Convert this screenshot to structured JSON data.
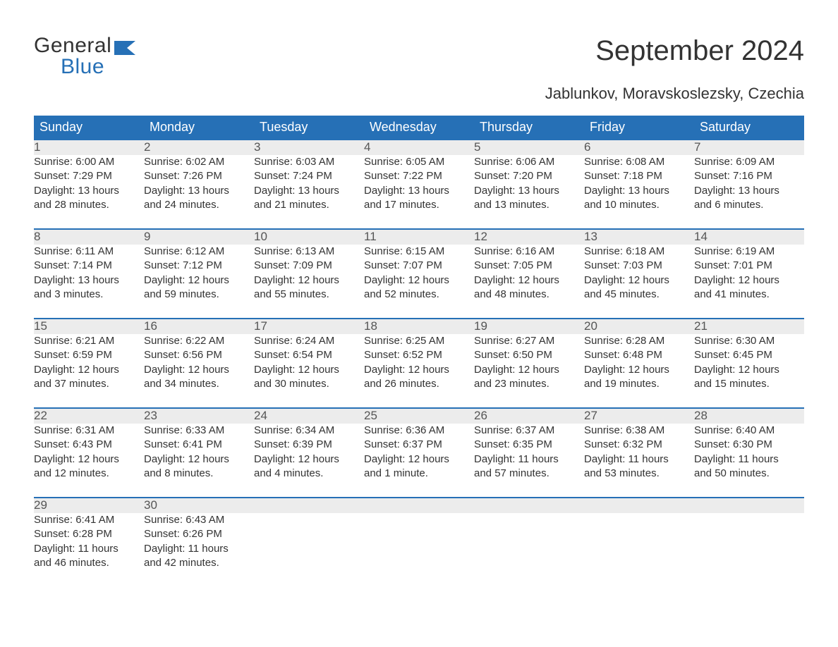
{
  "brand": {
    "line1": "General",
    "line2": "Blue"
  },
  "title": "September 2024",
  "location": "Jablunkov, Moravskoslezsky, Czechia",
  "colors": {
    "header_bg": "#2670b6",
    "header_text": "#ffffff",
    "daynum_bg": "#ececec",
    "border_top": "#2670b6",
    "body_text": "#333333",
    "daynum_text": "#555555",
    "background": "#ffffff"
  },
  "weekday_headers": [
    "Sunday",
    "Monday",
    "Tuesday",
    "Wednesday",
    "Thursday",
    "Friday",
    "Saturday"
  ],
  "weeks": [
    [
      {
        "n": "1",
        "sr": "Sunrise: 6:00 AM",
        "ss": "Sunset: 7:29 PM",
        "d1": "Daylight: 13 hours",
        "d2": "and 28 minutes."
      },
      {
        "n": "2",
        "sr": "Sunrise: 6:02 AM",
        "ss": "Sunset: 7:26 PM",
        "d1": "Daylight: 13 hours",
        "d2": "and 24 minutes."
      },
      {
        "n": "3",
        "sr": "Sunrise: 6:03 AM",
        "ss": "Sunset: 7:24 PM",
        "d1": "Daylight: 13 hours",
        "d2": "and 21 minutes."
      },
      {
        "n": "4",
        "sr": "Sunrise: 6:05 AM",
        "ss": "Sunset: 7:22 PM",
        "d1": "Daylight: 13 hours",
        "d2": "and 17 minutes."
      },
      {
        "n": "5",
        "sr": "Sunrise: 6:06 AM",
        "ss": "Sunset: 7:20 PM",
        "d1": "Daylight: 13 hours",
        "d2": "and 13 minutes."
      },
      {
        "n": "6",
        "sr": "Sunrise: 6:08 AM",
        "ss": "Sunset: 7:18 PM",
        "d1": "Daylight: 13 hours",
        "d2": "and 10 minutes."
      },
      {
        "n": "7",
        "sr": "Sunrise: 6:09 AM",
        "ss": "Sunset: 7:16 PM",
        "d1": "Daylight: 13 hours",
        "d2": "and 6 minutes."
      }
    ],
    [
      {
        "n": "8",
        "sr": "Sunrise: 6:11 AM",
        "ss": "Sunset: 7:14 PM",
        "d1": "Daylight: 13 hours",
        "d2": "and 3 minutes."
      },
      {
        "n": "9",
        "sr": "Sunrise: 6:12 AM",
        "ss": "Sunset: 7:12 PM",
        "d1": "Daylight: 12 hours",
        "d2": "and 59 minutes."
      },
      {
        "n": "10",
        "sr": "Sunrise: 6:13 AM",
        "ss": "Sunset: 7:09 PM",
        "d1": "Daylight: 12 hours",
        "d2": "and 55 minutes."
      },
      {
        "n": "11",
        "sr": "Sunrise: 6:15 AM",
        "ss": "Sunset: 7:07 PM",
        "d1": "Daylight: 12 hours",
        "d2": "and 52 minutes."
      },
      {
        "n": "12",
        "sr": "Sunrise: 6:16 AM",
        "ss": "Sunset: 7:05 PM",
        "d1": "Daylight: 12 hours",
        "d2": "and 48 minutes."
      },
      {
        "n": "13",
        "sr": "Sunrise: 6:18 AM",
        "ss": "Sunset: 7:03 PM",
        "d1": "Daylight: 12 hours",
        "d2": "and 45 minutes."
      },
      {
        "n": "14",
        "sr": "Sunrise: 6:19 AM",
        "ss": "Sunset: 7:01 PM",
        "d1": "Daylight: 12 hours",
        "d2": "and 41 minutes."
      }
    ],
    [
      {
        "n": "15",
        "sr": "Sunrise: 6:21 AM",
        "ss": "Sunset: 6:59 PM",
        "d1": "Daylight: 12 hours",
        "d2": "and 37 minutes."
      },
      {
        "n": "16",
        "sr": "Sunrise: 6:22 AM",
        "ss": "Sunset: 6:56 PM",
        "d1": "Daylight: 12 hours",
        "d2": "and 34 minutes."
      },
      {
        "n": "17",
        "sr": "Sunrise: 6:24 AM",
        "ss": "Sunset: 6:54 PM",
        "d1": "Daylight: 12 hours",
        "d2": "and 30 minutes."
      },
      {
        "n": "18",
        "sr": "Sunrise: 6:25 AM",
        "ss": "Sunset: 6:52 PM",
        "d1": "Daylight: 12 hours",
        "d2": "and 26 minutes."
      },
      {
        "n": "19",
        "sr": "Sunrise: 6:27 AM",
        "ss": "Sunset: 6:50 PM",
        "d1": "Daylight: 12 hours",
        "d2": "and 23 minutes."
      },
      {
        "n": "20",
        "sr": "Sunrise: 6:28 AM",
        "ss": "Sunset: 6:48 PM",
        "d1": "Daylight: 12 hours",
        "d2": "and 19 minutes."
      },
      {
        "n": "21",
        "sr": "Sunrise: 6:30 AM",
        "ss": "Sunset: 6:45 PM",
        "d1": "Daylight: 12 hours",
        "d2": "and 15 minutes."
      }
    ],
    [
      {
        "n": "22",
        "sr": "Sunrise: 6:31 AM",
        "ss": "Sunset: 6:43 PM",
        "d1": "Daylight: 12 hours",
        "d2": "and 12 minutes."
      },
      {
        "n": "23",
        "sr": "Sunrise: 6:33 AM",
        "ss": "Sunset: 6:41 PM",
        "d1": "Daylight: 12 hours",
        "d2": "and 8 minutes."
      },
      {
        "n": "24",
        "sr": "Sunrise: 6:34 AM",
        "ss": "Sunset: 6:39 PM",
        "d1": "Daylight: 12 hours",
        "d2": "and 4 minutes."
      },
      {
        "n": "25",
        "sr": "Sunrise: 6:36 AM",
        "ss": "Sunset: 6:37 PM",
        "d1": "Daylight: 12 hours",
        "d2": "and 1 minute."
      },
      {
        "n": "26",
        "sr": "Sunrise: 6:37 AM",
        "ss": "Sunset: 6:35 PM",
        "d1": "Daylight: 11 hours",
        "d2": "and 57 minutes."
      },
      {
        "n": "27",
        "sr": "Sunrise: 6:38 AM",
        "ss": "Sunset: 6:32 PM",
        "d1": "Daylight: 11 hours",
        "d2": "and 53 minutes."
      },
      {
        "n": "28",
        "sr": "Sunrise: 6:40 AM",
        "ss": "Sunset: 6:30 PM",
        "d1": "Daylight: 11 hours",
        "d2": "and 50 minutes."
      }
    ],
    [
      {
        "n": "29",
        "sr": "Sunrise: 6:41 AM",
        "ss": "Sunset: 6:28 PM",
        "d1": "Daylight: 11 hours",
        "d2": "and 46 minutes."
      },
      {
        "n": "30",
        "sr": "Sunrise: 6:43 AM",
        "ss": "Sunset: 6:26 PM",
        "d1": "Daylight: 11 hours",
        "d2": "and 42 minutes."
      },
      null,
      null,
      null,
      null,
      null
    ]
  ]
}
